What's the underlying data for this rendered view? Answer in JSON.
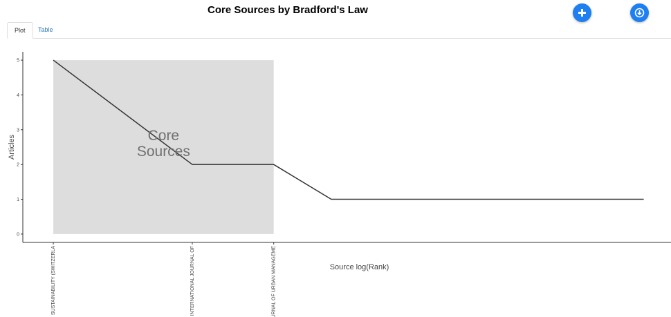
{
  "tabs": [
    "Plot",
    "Table"
  ],
  "chart_data": {
    "type": "line",
    "title": "Core Sources by Bradford's Law",
    "xlabel": "Source log(Rank)",
    "ylabel": "Articles",
    "x": [
      0,
      0.693,
      1.099,
      1.386,
      1.609,
      1.792,
      1.946,
      2.079,
      2.197,
      2.303,
      2.398,
      2.485,
      2.565,
      2.639,
      2.708,
      2.773,
      2.833,
      2.89,
      2.944
    ],
    "values": [
      5,
      2,
      2,
      1,
      1,
      1,
      1,
      1,
      1,
      1,
      1,
      1,
      1,
      1,
      1,
      1,
      1,
      1,
      1
    ],
    "color": "#333333",
    "xlim": [
      -0.152,
      3.08
    ],
    "ylim": [
      -0.24,
      5.24
    ],
    "xticks": [
      {
        "value": 0,
        "label": "SUSTAINABILITY (SWITZERLA"
      },
      {
        "value": 0.693,
        "label": "INTERNATIONAL JOURNAL OF"
      },
      {
        "value": 1.099,
        "label": "JOURNAL OF URBAN MANAGEME"
      }
    ],
    "yticks": [
      0,
      1,
      2,
      3,
      4,
      5
    ],
    "shade": {
      "x": [
        0,
        1.099
      ],
      "y": [
        0,
        5
      ],
      "color": "#dddddd"
    },
    "annotation": "Core Sources"
  }
}
